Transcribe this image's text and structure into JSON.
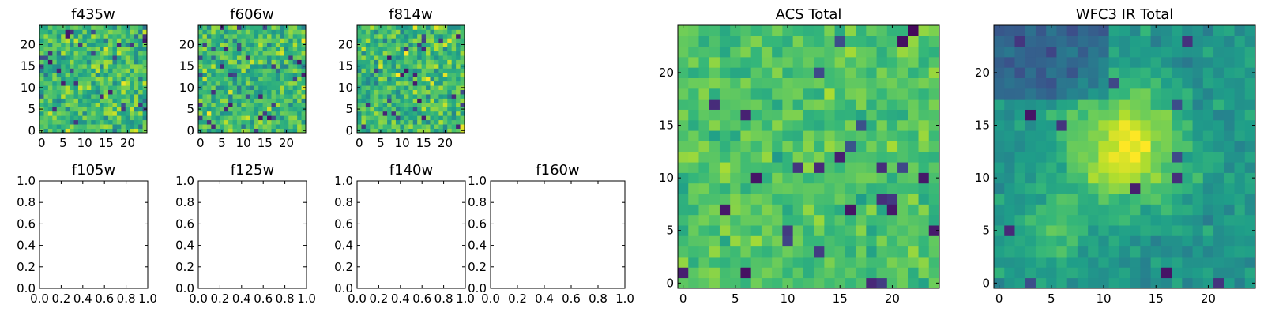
{
  "chart_data": [
    {
      "type": "heatmap",
      "title": "f435w",
      "rows": 25,
      "cols": 25,
      "seed": 435,
      "style": "noise",
      "xlim": [
        -0.5,
        24.5
      ],
      "ylim": [
        -0.5,
        24.5
      ],
      "xticks": [
        0,
        5,
        10,
        15,
        20
      ],
      "yticks": [
        0,
        5,
        10,
        15,
        20
      ],
      "colormap": "viridis",
      "grid": false
    },
    {
      "type": "heatmap",
      "title": "f606w",
      "rows": 25,
      "cols": 25,
      "seed": 606,
      "style": "noise",
      "xlim": [
        -0.5,
        24.5
      ],
      "ylim": [
        -0.5,
        24.5
      ],
      "xticks": [
        0,
        5,
        10,
        15,
        20
      ],
      "yticks": [
        0,
        5,
        10,
        15,
        20
      ],
      "colormap": "viridis",
      "grid": false
    },
    {
      "type": "heatmap",
      "title": "f814w",
      "rows": 25,
      "cols": 25,
      "seed": 814,
      "style": "noise",
      "xlim": [
        -0.5,
        24.5
      ],
      "ylim": [
        -0.5,
        24.5
      ],
      "xticks": [
        0,
        5,
        10,
        15,
        20
      ],
      "yticks": [
        0,
        5,
        10,
        15,
        20
      ],
      "colormap": "viridis",
      "grid": false
    },
    {
      "type": "empty",
      "title": "f105w",
      "xlim": [
        0,
        1
      ],
      "ylim": [
        0,
        1
      ],
      "xticks": [
        "0.0",
        "0.2",
        "0.4",
        "0.6",
        "0.8",
        "1.0"
      ],
      "yticks": [
        "0.0",
        "0.2",
        "0.4",
        "0.6",
        "0.8",
        "1.0"
      ]
    },
    {
      "type": "empty",
      "title": "f125w",
      "xlim": [
        0,
        1
      ],
      "ylim": [
        0,
        1
      ],
      "xticks": [
        "0.0",
        "0.2",
        "0.4",
        "0.6",
        "0.8",
        "1.0"
      ],
      "yticks": [
        "0.0",
        "0.2",
        "0.4",
        "0.6",
        "0.8",
        "1.0"
      ]
    },
    {
      "type": "empty",
      "title": "f140w",
      "xlim": [
        0,
        1
      ],
      "ylim": [
        0,
        1
      ],
      "xticks": [
        "0.0",
        "0.2",
        "0.4",
        "0.6",
        "0.8",
        "1.0"
      ],
      "yticks": [
        "0.0",
        "0.2",
        "0.4",
        "0.6",
        "0.8",
        "1.0"
      ]
    },
    {
      "type": "empty",
      "title": "f160w",
      "xlim": [
        0,
        1
      ],
      "ylim": [
        0,
        1
      ],
      "xticks": [
        "0.0",
        "0.2",
        "0.4",
        "0.6",
        "0.8",
        "1.0"
      ],
      "yticks": [
        "0.0",
        "0.2",
        "0.4",
        "0.6",
        "0.8",
        "1.0"
      ]
    },
    {
      "type": "heatmap",
      "title": "ACS Total",
      "rows": 25,
      "cols": 25,
      "seed": 1,
      "style": "acs",
      "xlim": [
        -0.5,
        24.5
      ],
      "ylim": [
        -0.5,
        24.5
      ],
      "xticks": [
        0,
        5,
        10,
        15,
        20
      ],
      "yticks": [
        0,
        5,
        10,
        15,
        20
      ],
      "colormap": "viridis",
      "grid": false
    },
    {
      "type": "heatmap",
      "title": "WFC3 IR Total",
      "rows": 25,
      "cols": 25,
      "seed": 2,
      "style": "wfc3",
      "source_center": [
        12,
        13
      ],
      "xlim": [
        -0.5,
        24.5
      ],
      "ylim": [
        -0.5,
        24.5
      ],
      "xticks": [
        0,
        5,
        10,
        15,
        20
      ],
      "yticks": [
        0,
        5,
        10,
        15,
        20
      ],
      "colormap": "viridis",
      "grid": false
    }
  ]
}
